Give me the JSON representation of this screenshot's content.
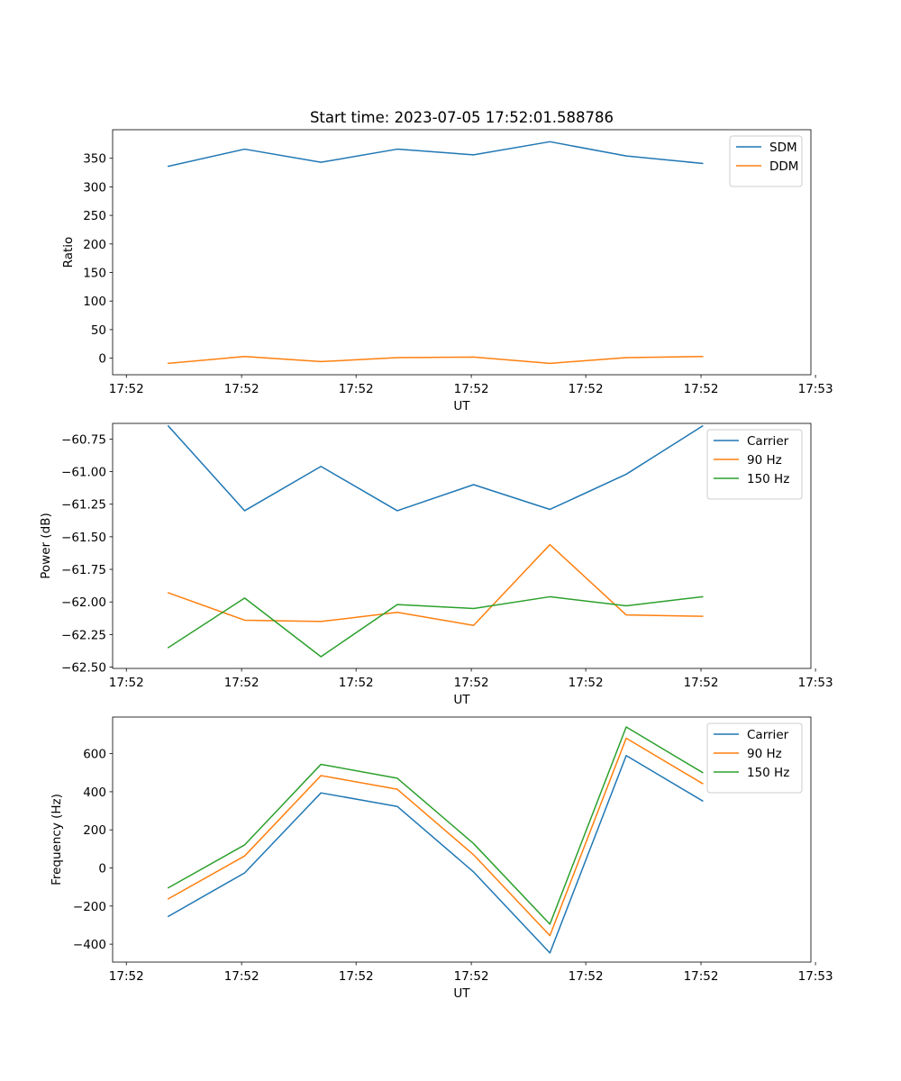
{
  "figure": {
    "title": "Start time: 2023-07-05 17:52:01.588786"
  },
  "chart_data": [
    {
      "type": "line",
      "title": "Start time: 2023-07-05 17:52:01.588786",
      "xlabel": "UT",
      "ylabel": "Ratio",
      "x": [
        1,
        2,
        3,
        4,
        5,
        6,
        7,
        8
      ],
      "xlim": [
        0.27,
        9.42
      ],
      "ylim": [
        -29,
        400
      ],
      "yticks": [
        0,
        50,
        100,
        150,
        200,
        250,
        300,
        350
      ],
      "ytick_labels": [
        "0",
        "50",
        "100",
        "150",
        "200",
        "250",
        "300",
        "350"
      ],
      "xticks": [
        0.45,
        1.96,
        3.46,
        4.97,
        6.47,
        7.98,
        9.48
      ],
      "xtick_labels": [
        "17:52",
        "17:52",
        "17:52",
        "17:52",
        "17:52",
        "17:52",
        "17:53"
      ],
      "legend_position": "top-right",
      "series": [
        {
          "name": "SDM",
          "color": "#1f77b4",
          "values": [
            336,
            366,
            343,
            366,
            356,
            379,
            354,
            341
          ]
        },
        {
          "name": "DDM",
          "color": "#ff7f0e",
          "values": [
            -9,
            3,
            -6,
            1,
            2,
            -9,
            1,
            3
          ]
        }
      ]
    },
    {
      "type": "line",
      "title": "",
      "xlabel": "UT",
      "ylabel": "Power (dB)",
      "x": [
        1,
        2,
        3,
        4,
        5,
        6,
        7,
        8
      ],
      "xlim": [
        0.27,
        9.42
      ],
      "ylim": [
        -62.51,
        -60.63
      ],
      "yticks": [
        -62.5,
        -62.25,
        -62.0,
        -61.75,
        -61.5,
        -61.25,
        -61.0,
        -60.75
      ],
      "ytick_labels": [
        "−62.50",
        "−62.25",
        "−62.00",
        "−61.75",
        "−61.50",
        "−61.25",
        "−61.00",
        "−60.75"
      ],
      "xticks": [
        0.45,
        1.96,
        3.46,
        4.97,
        6.47,
        7.98,
        9.48
      ],
      "xtick_labels": [
        "17:52",
        "17:52",
        "17:52",
        "17:52",
        "17:52",
        "17:52",
        "17:53"
      ],
      "legend_position": "top-right",
      "series": [
        {
          "name": "Carrier",
          "color": "#1f77b4",
          "values": [
            -60.65,
            -61.3,
            -60.96,
            -61.3,
            -61.1,
            -61.29,
            -61.02,
            -60.65
          ]
        },
        {
          "name": "90 Hz",
          "color": "#ff7f0e",
          "values": [
            -61.93,
            -62.14,
            -62.15,
            -62.08,
            -62.18,
            -61.56,
            -62.1,
            -62.11
          ]
        },
        {
          "name": "150 Hz",
          "color": "#2ca02c",
          "values": [
            -62.35,
            -61.97,
            -62.42,
            -62.02,
            -62.05,
            -61.96,
            -62.03,
            -61.96
          ]
        }
      ]
    },
    {
      "type": "line",
      "title": "",
      "xlabel": "UT",
      "ylabel": "Frequency (Hz)",
      "x": [
        1,
        2,
        3,
        4,
        5,
        6,
        7,
        8
      ],
      "xlim": [
        0.27,
        9.42
      ],
      "ylim": [
        -494,
        792
      ],
      "yticks": [
        -400,
        -200,
        0,
        200,
        400,
        600
      ],
      "ytick_labels": [
        "−400",
        "−200",
        "0",
        "200",
        "400",
        "600"
      ],
      "xticks": [
        0.45,
        1.96,
        3.46,
        4.97,
        6.47,
        7.98,
        9.48
      ],
      "xtick_labels": [
        "17:52",
        "17:52",
        "17:52",
        "17:52",
        "17:52",
        "17:52",
        "17:53"
      ],
      "legend_position": "top-right",
      "series": [
        {
          "name": "Carrier",
          "color": "#1f77b4",
          "values": [
            -254,
            -26,
            394,
            323,
            -21,
            -446,
            590,
            352
          ]
        },
        {
          "name": "90 Hz",
          "color": "#ff7f0e",
          "values": [
            -162,
            63,
            485,
            413,
            69,
            -355,
            681,
            443
          ]
        },
        {
          "name": "150 Hz",
          "color": "#2ca02c",
          "values": [
            -104,
            121,
            544,
            471,
            128,
            -295,
            740,
            501
          ]
        }
      ]
    }
  ]
}
